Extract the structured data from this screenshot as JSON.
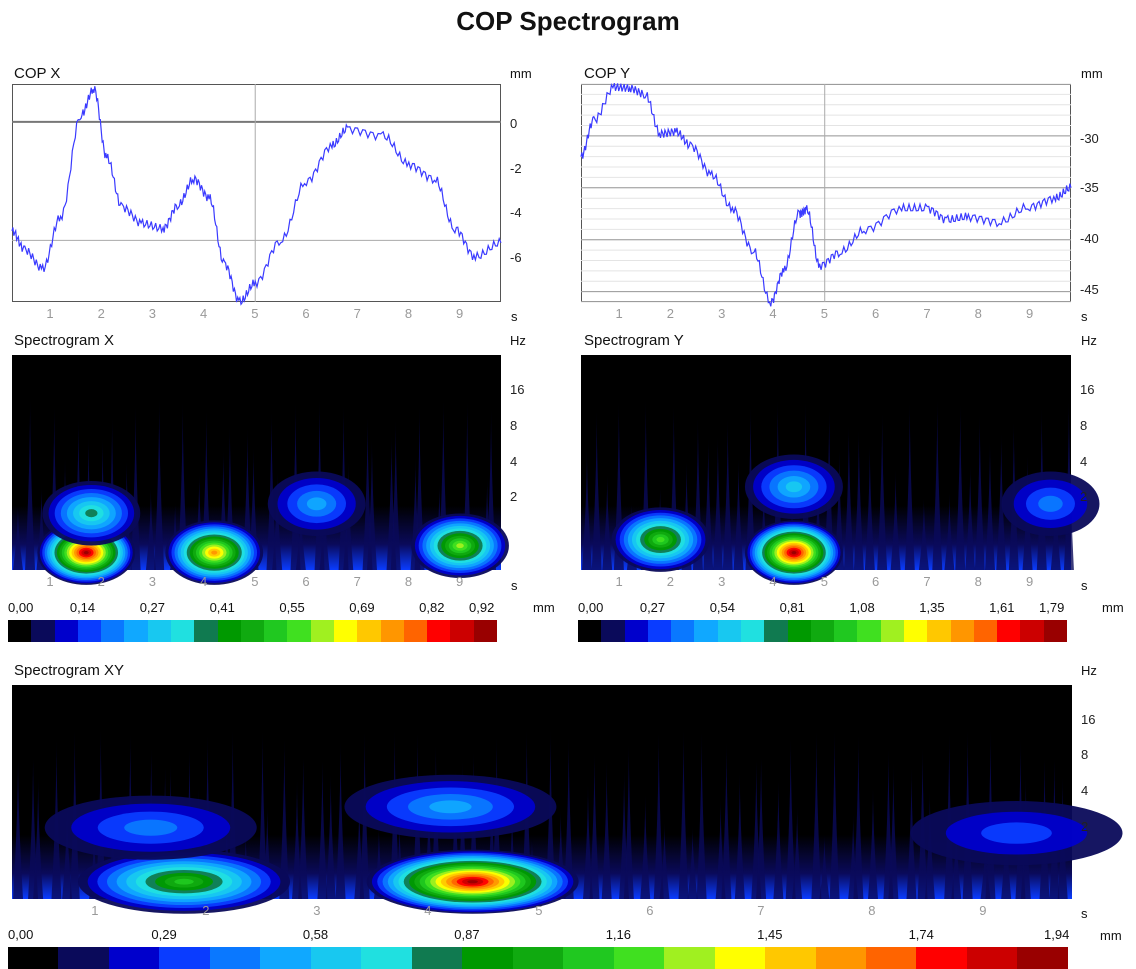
{
  "title": "COP Spectrogram",
  "copx": {
    "label": "COP X",
    "unit_y": "mm",
    "unit_x": "s",
    "xticks": [
      "1",
      "2",
      "3",
      "4",
      "5",
      "6",
      "7",
      "8",
      "9"
    ],
    "yticks": [
      "0",
      "-2",
      "-4",
      "-6"
    ]
  },
  "copy": {
    "label": "COP Y",
    "unit_y": "mm",
    "unit_x": "s",
    "xticks": [
      "1",
      "2",
      "3",
      "4",
      "5",
      "6",
      "7",
      "8",
      "9"
    ],
    "yticks": [
      "-30",
      "-35",
      "-40",
      "-45"
    ]
  },
  "specx": {
    "label": "Spectrogram X",
    "unit_y": "Hz",
    "unit_x": "s",
    "xticks": [
      "1",
      "2",
      "3",
      "4",
      "5",
      "6",
      "7",
      "8",
      "9"
    ],
    "yticks": [
      "16",
      "8",
      "4",
      "2"
    ],
    "scale_values": [
      "0,00",
      "0,14",
      "0,27",
      "0,41",
      "0,55",
      "0,69",
      "0,82",
      "0,92"
    ],
    "scale_unit": "mm"
  },
  "specy": {
    "label": "Spectrogram Y",
    "unit_y": "Hz",
    "unit_x": "s",
    "xticks": [
      "1",
      "2",
      "3",
      "4",
      "5",
      "6",
      "7",
      "8",
      "9"
    ],
    "yticks": [
      "16",
      "8",
      "4",
      "2"
    ],
    "scale_values": [
      "0,00",
      "0,27",
      "0,54",
      "0,81",
      "1,08",
      "1,35",
      "1,61",
      "1,79"
    ],
    "scale_unit": "mm"
  },
  "specxy": {
    "label": "Spectrogram XY",
    "unit_y": "Hz",
    "unit_x": "s",
    "xticks": [
      "1",
      "2",
      "3",
      "4",
      "5",
      "6",
      "7",
      "8",
      "9"
    ],
    "yticks": [
      "16",
      "8",
      "4",
      "2"
    ],
    "scale_values": [
      "0,00",
      "0,29",
      "0,58",
      "0,87",
      "1,16",
      "1,45",
      "1,74",
      "1,94"
    ],
    "scale_unit": "mm"
  },
  "colormap": [
    "#000000",
    "#0a0a5a",
    "#0000cc",
    "#0a3cff",
    "#0a78ff",
    "#10a8ff",
    "#18c8f0",
    "#20e0e0",
    "#107a50",
    "#009900",
    "#10aa10",
    "#20c820",
    "#40e020",
    "#a0f020",
    "#ffff00",
    "#ffc800",
    "#ff9600",
    "#ff6400",
    "#ff0000",
    "#cc0000",
    "#990000"
  ],
  "chart_data": [
    {
      "type": "line",
      "title": "COP X",
      "xlabel": "s",
      "ylabel": "mm",
      "xlim": [
        0.25,
        9.8
      ],
      "ylim": [
        -7.6,
        1.6
      ],
      "x": [
        0.25,
        0.5,
        0.85,
        1.2,
        1.6,
        1.85,
        2.1,
        2.4,
        2.8,
        3.2,
        3.5,
        3.8,
        4.1,
        4.4,
        4.7,
        5.0,
        5.5,
        6.0,
        6.5,
        6.8,
        7.5,
        8.0,
        8.5,
        8.9,
        9.3,
        9.8
      ],
      "y": [
        -4.6,
        -5.4,
        -6.2,
        -4.0,
        0.3,
        1.4,
        -1.5,
        -3.6,
        -4.3,
        -4.5,
        -3.5,
        -2.4,
        -3.2,
        -6.0,
        -7.6,
        -6.8,
        -5.0,
        -2.5,
        -1.0,
        -0.3,
        -0.6,
        -1.8,
        -2.4,
        -4.5,
        -5.7,
        -5.1
      ]
    },
    {
      "type": "line",
      "title": "COP Y",
      "xlabel": "s",
      "ylabel": "mm",
      "xlim": [
        0.25,
        9.8
      ],
      "ylim": [
        -46,
        -25
      ],
      "x": [
        0.25,
        0.5,
        0.9,
        1.2,
        1.5,
        1.8,
        2.1,
        2.4,
        2.8,
        3.2,
        3.6,
        3.95,
        4.2,
        4.5,
        4.65,
        4.9,
        5.3,
        5.8,
        6.5,
        7.0,
        7.4,
        7.8,
        8.4,
        9.0,
        9.5,
        9.8
      ],
      "y": [
        -32.0,
        -28.5,
        -25.3,
        -25.4,
        -26.0,
        -29.8,
        -29.6,
        -31.0,
        -33.8,
        -37.0,
        -41.0,
        -46.0,
        -43.0,
        -37.5,
        -37.1,
        -42.5,
        -41.2,
        -39.0,
        -37.0,
        -37.0,
        -38.1,
        -37.8,
        -38.3,
        -36.8,
        -36.0,
        -35.0
      ]
    },
    {
      "type": "heatmap",
      "title": "Spectrogram X",
      "xlabel": "s",
      "ylabel": "Hz",
      "xlim": [
        0.25,
        9.8
      ],
      "ylim": [
        0.5,
        32
      ],
      "yscale": "log",
      "value_range": [
        0.0,
        0.92
      ],
      "hotspots": [
        {
          "t": 1.7,
          "f": 0.7,
          "value": 0.92
        },
        {
          "t": 4.2,
          "f": 0.7,
          "value": 0.74
        },
        {
          "t": 9.0,
          "f": 0.8,
          "value": 0.6
        },
        {
          "t": 1.8,
          "f": 1.5,
          "value": 0.35
        },
        {
          "t": 6.2,
          "f": 1.8,
          "value": 0.25
        }
      ]
    },
    {
      "type": "heatmap",
      "title": "Spectrogram Y",
      "xlabel": "s",
      "ylabel": "Hz",
      "xlim": [
        0.25,
        9.8
      ],
      "ylim": [
        0.5,
        32
      ],
      "yscale": "log",
      "value_range": [
        0.0,
        1.79
      ],
      "hotspots": [
        {
          "t": 4.4,
          "f": 0.7,
          "value": 1.79
        },
        {
          "t": 1.8,
          "f": 0.9,
          "value": 1.1
        },
        {
          "t": 4.4,
          "f": 2.5,
          "value": 0.5
        },
        {
          "t": 9.4,
          "f": 1.8,
          "value": 0.4
        }
      ]
    },
    {
      "type": "heatmap",
      "title": "Spectrogram XY",
      "xlabel": "s",
      "ylabel": "Hz",
      "xlim": [
        0.25,
        9.8
      ],
      "ylim": [
        0.5,
        32
      ],
      "yscale": "log",
      "value_range": [
        0.0,
        1.94
      ],
      "hotspots": [
        {
          "t": 4.4,
          "f": 0.7,
          "value": 1.94
        },
        {
          "t": 1.8,
          "f": 0.7,
          "value": 1.1
        },
        {
          "t": 1.5,
          "f": 2.0,
          "value": 0.35
        },
        {
          "t": 4.2,
          "f": 3.0,
          "value": 0.45
        },
        {
          "t": 9.3,
          "f": 1.8,
          "value": 0.3
        }
      ]
    }
  ]
}
